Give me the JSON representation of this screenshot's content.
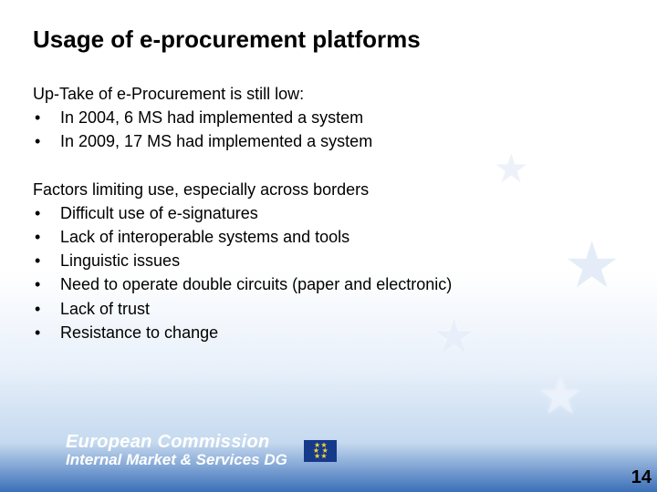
{
  "title": "Usage of e-procurement platforms",
  "block1": {
    "lead": "Up-Take of e-Procurement is still low:",
    "items": [
      "In 2004, 6 MS had implemented a system",
      "In 2009, 17 MS had implemented a system"
    ]
  },
  "block2": {
    "lead": "Factors limiting use, especially across borders",
    "items": [
      "Difficult use of e-signatures",
      "Lack of interoperable systems and tools",
      "Linguistic issues",
      "Need to operate double circuits (paper and electronic)",
      "Lack of trust",
      "Resistance to change"
    ]
  },
  "footer": {
    "line1": "European Commission",
    "line2": "Internal Market & Services DG"
  },
  "page_number": "14",
  "bullet_char": "•",
  "colors": {
    "text": "#000000",
    "footer_text": "#ffffff",
    "flag_bg": "#153a8a",
    "flag_star": "#f9d43a"
  }
}
